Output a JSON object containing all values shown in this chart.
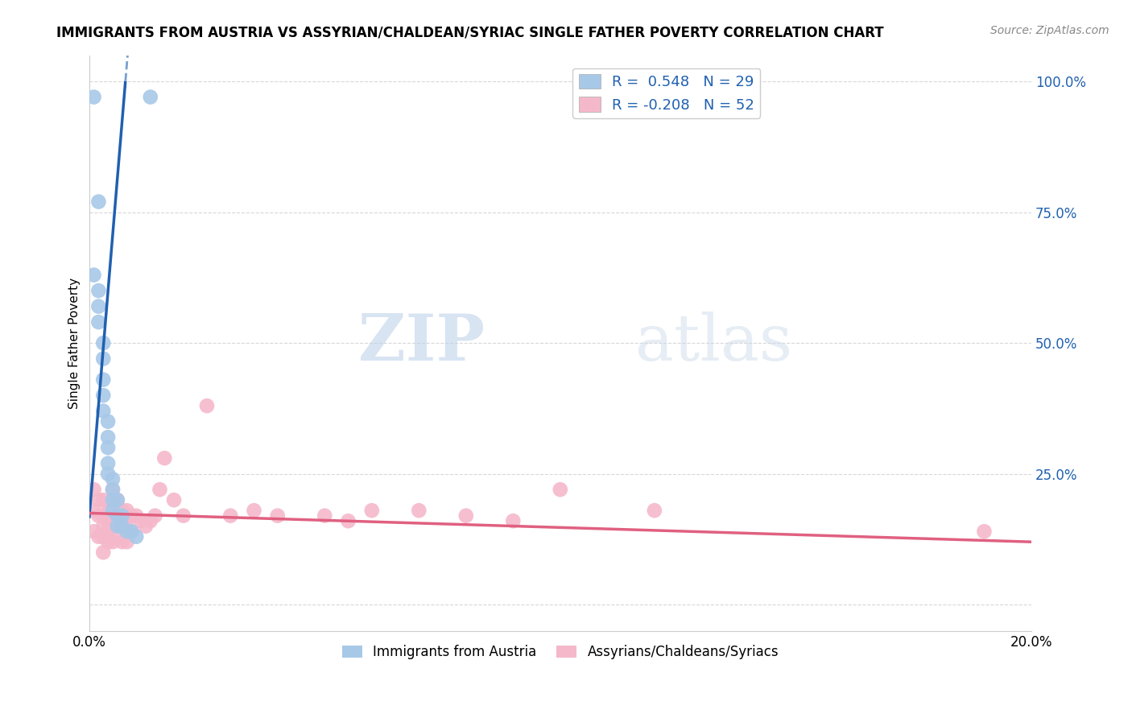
{
  "title": "IMMIGRANTS FROM AUSTRIA VS ASSYRIAN/CHALDEAN/SYRIAC SINGLE FATHER POVERTY CORRELATION CHART",
  "source": "Source: ZipAtlas.com",
  "series1_label": "Immigrants from Austria",
  "series2_label": "Assyrians/Chaldeans/Syriacs",
  "series1_color": "#a8c8e8",
  "series2_color": "#f5b8cb",
  "series1_line_color": "#2060b0",
  "series2_line_color": "#e06080",
  "R1": 0.548,
  "N1": 29,
  "R2": -0.208,
  "N2": 52,
  "legend_text_color": "#2060b0",
  "watermark_zip": "ZIP",
  "watermark_atlas": "atlas",
  "background_color": "#ffffff",
  "grid_color": "#d8d8d8",
  "xmin": 0.0,
  "xmax": 0.2,
  "ymin": -0.05,
  "ymax": 1.05,
  "blue_x": [
    0.001,
    0.013,
    0.002,
    0.001,
    0.002,
    0.002,
    0.002,
    0.003,
    0.003,
    0.003,
    0.003,
    0.003,
    0.004,
    0.004,
    0.004,
    0.004,
    0.004,
    0.005,
    0.005,
    0.005,
    0.005,
    0.006,
    0.006,
    0.006,
    0.007,
    0.007,
    0.008,
    0.009,
    0.01
  ],
  "blue_y": [
    0.97,
    0.97,
    0.77,
    0.63,
    0.6,
    0.57,
    0.54,
    0.5,
    0.47,
    0.43,
    0.4,
    0.37,
    0.35,
    0.32,
    0.3,
    0.27,
    0.25,
    0.24,
    0.22,
    0.2,
    0.18,
    0.2,
    0.17,
    0.15,
    0.17,
    0.15,
    0.14,
    0.14,
    0.13
  ],
  "pink_x": [
    0.001,
    0.001,
    0.001,
    0.002,
    0.002,
    0.002,
    0.003,
    0.003,
    0.003,
    0.003,
    0.003,
    0.004,
    0.004,
    0.004,
    0.004,
    0.005,
    0.005,
    0.005,
    0.005,
    0.006,
    0.006,
    0.006,
    0.007,
    0.007,
    0.007,
    0.008,
    0.008,
    0.008,
    0.009,
    0.009,
    0.01,
    0.011,
    0.012,
    0.013,
    0.014,
    0.015,
    0.016,
    0.018,
    0.02,
    0.025,
    0.03,
    0.035,
    0.04,
    0.05,
    0.055,
    0.06,
    0.07,
    0.08,
    0.09,
    0.1,
    0.12,
    0.19
  ],
  "pink_y": [
    0.22,
    0.18,
    0.14,
    0.2,
    0.17,
    0.13,
    0.2,
    0.17,
    0.15,
    0.13,
    0.1,
    0.18,
    0.16,
    0.14,
    0.12,
    0.22,
    0.18,
    0.15,
    0.12,
    0.2,
    0.17,
    0.14,
    0.18,
    0.15,
    0.12,
    0.18,
    0.15,
    0.12,
    0.17,
    0.14,
    0.17,
    0.16,
    0.15,
    0.16,
    0.17,
    0.22,
    0.28,
    0.2,
    0.17,
    0.38,
    0.17,
    0.18,
    0.17,
    0.17,
    0.16,
    0.18,
    0.18,
    0.17,
    0.16,
    0.22,
    0.18,
    0.14
  ],
  "blue_line_x0": 0.0,
  "blue_line_y0": 0.165,
  "blue_line_x1": 0.0077,
  "blue_line_y1": 1.0,
  "pink_line_x0": 0.0,
  "pink_line_y0": 0.175,
  "pink_line_x1": 0.2,
  "pink_line_y1": 0.12
}
